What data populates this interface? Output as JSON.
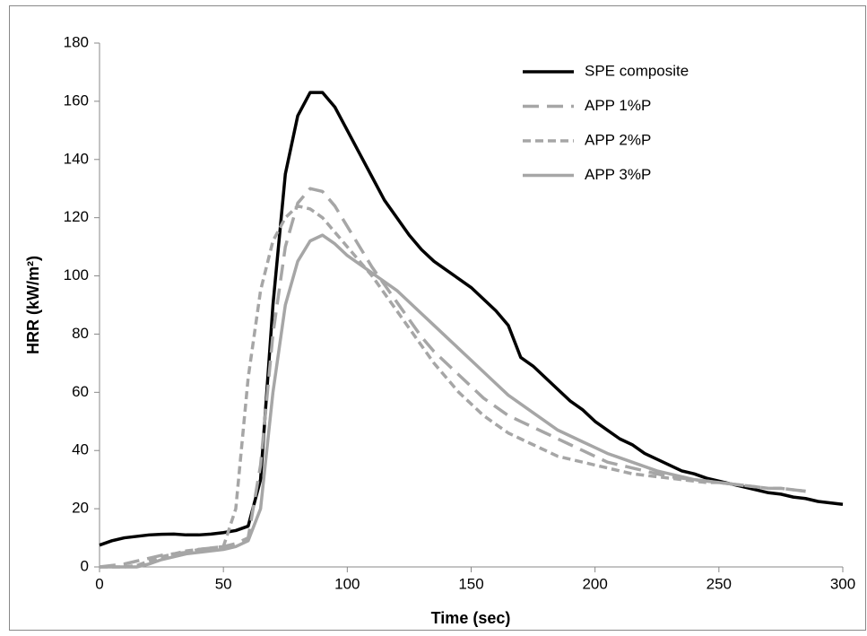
{
  "chart_data": {
    "type": "line",
    "xlabel": "Time (sec)",
    "ylabel": "HRR (kW/m²)",
    "x": [
      0,
      5,
      10,
      15,
      20,
      25,
      30,
      35,
      40,
      45,
      50,
      55,
      60,
      65,
      70,
      75,
      80,
      85,
      90,
      95,
      100,
      105,
      110,
      115,
      120,
      125,
      130,
      135,
      140,
      145,
      150,
      155,
      160,
      165,
      170,
      175,
      180,
      185,
      190,
      195,
      200,
      205,
      210,
      215,
      220,
      225,
      230,
      235,
      240,
      245,
      250,
      255,
      260,
      265,
      270,
      275,
      280,
      285,
      290,
      295,
      300
    ],
    "series": [
      {
        "name": "SPE composite",
        "color": "#000000",
        "linestyle": "solid",
        "values": [
          7.5,
          9,
          10,
          10.5,
          11,
          11.2,
          11.3,
          11,
          11,
          11.3,
          11.8,
          12.5,
          14,
          30,
          90,
          135,
          155,
          163,
          163,
          158,
          150,
          142,
          134,
          126,
          120,
          114,
          109,
          105,
          102,
          99,
          96,
          92,
          88,
          83,
          72,
          69,
          65,
          61,
          57,
          54,
          50,
          47,
          44,
          42,
          39,
          37,
          35,
          33,
          32,
          30.5,
          29.5,
          28.5,
          27.5,
          26.5,
          25.5,
          25,
          24,
          23.5,
          22.5,
          22,
          21.5
        ]
      },
      {
        "name": "APP 1%P",
        "color": "#a6a6a6",
        "linestyle": "dashed",
        "values": [
          0,
          0.5,
          1,
          2,
          3,
          4,
          4.5,
          5,
          6,
          6.5,
          7,
          8,
          10,
          35,
          80,
          110,
          125,
          130,
          129,
          124,
          117,
          110,
          103,
          97,
          91,
          85,
          79,
          74,
          70,
          66,
          62,
          58,
          55,
          52,
          50,
          48,
          46,
          44,
          42,
          40,
          38,
          36,
          35,
          34,
          33,
          32,
          31,
          30.5,
          30,
          29.5,
          29,
          28.5,
          28,
          27.5,
          27,
          27,
          26.5,
          26,
          null,
          null,
          null
        ]
      },
      {
        "name": "APP 2%P",
        "color": "#a6a6a6",
        "linestyle": "dotted",
        "values": [
          0,
          0,
          0,
          0.5,
          2,
          3.5,
          4.5,
          5.5,
          6,
          6.5,
          7,
          20,
          65,
          95,
          112,
          120,
          124,
          123,
          120,
          115,
          110,
          105,
          100,
          94,
          88,
          82,
          76,
          70,
          65,
          60,
          56,
          52,
          49,
          46,
          44,
          42,
          40,
          38,
          37,
          36,
          35,
          34,
          33,
          32,
          31.5,
          31,
          30.5,
          30,
          29.5,
          29,
          29,
          28.5,
          28,
          27.5,
          27,
          27,
          26.5,
          26,
          null,
          null,
          null
        ]
      },
      {
        "name": "APP 3%P",
        "color": "#a6a6a6",
        "linestyle": "solid",
        "values": [
          0,
          0,
          0,
          0,
          1,
          2.5,
          3.5,
          4.5,
          5,
          5.5,
          6,
          7,
          9,
          20,
          60,
          90,
          105,
          112,
          114,
          111,
          107,
          104,
          101,
          98,
          95,
          91,
          87,
          83,
          79,
          75,
          71,
          67,
          63,
          59,
          56,
          53,
          50,
          47,
          45,
          43,
          41,
          39,
          37.5,
          36,
          34.5,
          33,
          32,
          31,
          30,
          29.5,
          29,
          28.5,
          28,
          null,
          null,
          null,
          null,
          null,
          null,
          null,
          null
        ]
      }
    ],
    "xlim": [
      0,
      300
    ],
    "xticks": [
      0,
      50,
      100,
      150,
      200,
      250,
      300
    ],
    "ylim": [
      0,
      180
    ],
    "yticks": [
      0,
      20,
      40,
      60,
      80,
      100,
      120,
      140,
      160,
      180
    ],
    "grid": false,
    "legend": "upper right"
  }
}
